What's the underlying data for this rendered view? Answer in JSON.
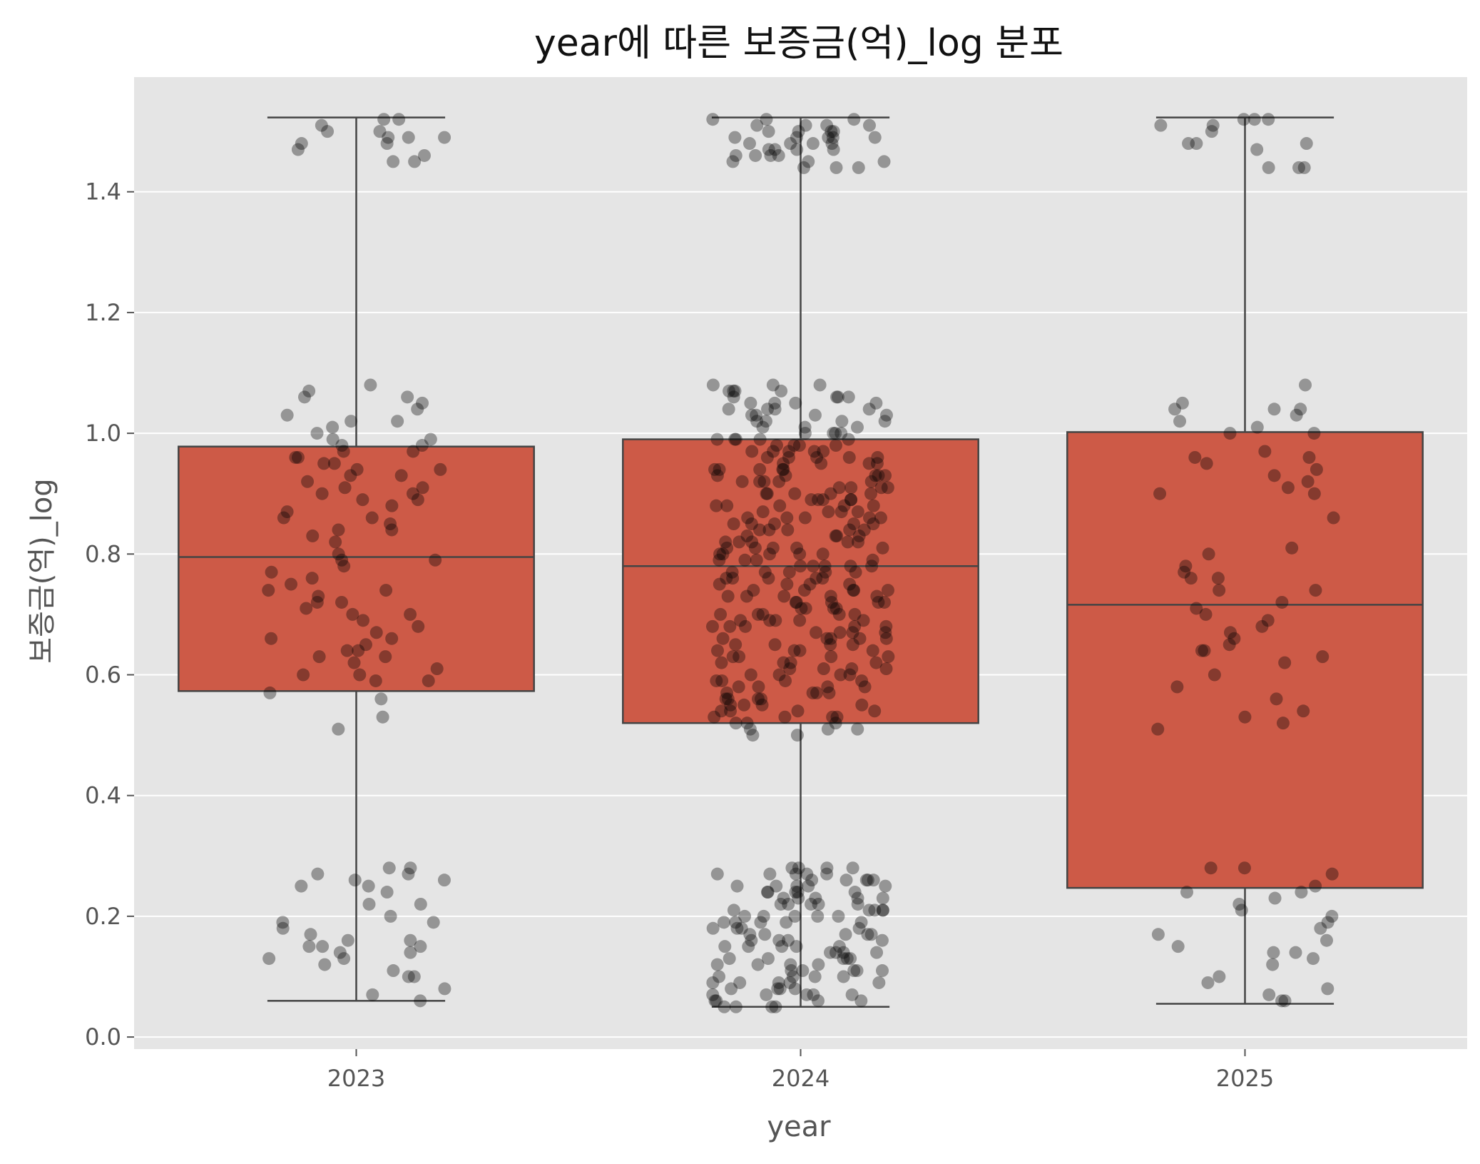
{
  "chart_data": {
    "type": "box",
    "title": "year에 따른 보증금(억)_log 분포",
    "xlabel": "year",
    "ylabel": "보증금(억)_log",
    "ylim": [
      -0.02,
      1.59
    ],
    "yticks": [
      "0.0",
      "0.2",
      "0.4",
      "0.6",
      "0.8",
      "1.0",
      "1.2",
      "1.4"
    ],
    "grid": true,
    "colors": {
      "panel": "#e5e5e5",
      "grid": "#ffffff",
      "box_fill": "#cd5a47",
      "box_edge": "#444444",
      "points": "#000000"
    },
    "categories": [
      "2023",
      "2024",
      "2025"
    ],
    "boxes": [
      {
        "category": "2023",
        "whisker_low": 0.06,
        "q1": 0.573,
        "median": 0.795,
        "q3": 0.978,
        "whisker_high": 1.523
      },
      {
        "category": "2024",
        "whisker_low": 0.05,
        "q1": 0.52,
        "median": 0.78,
        "q3": 0.99,
        "whisker_high": 1.523
      },
      {
        "category": "2025",
        "whisker_low": 0.055,
        "q1": 0.247,
        "median": 0.716,
        "q3": 1.002,
        "whisker_high": 1.523
      }
    ],
    "points": [
      {
        "category": "2023",
        "values": [
          1.52,
          1.51,
          1.5,
          1.49,
          1.49,
          1.48,
          1.47,
          1.46,
          1.45,
          1.45,
          1.52,
          1.5,
          1.49,
          1.48,
          1.08,
          1.07,
          1.06,
          1.06,
          1.05,
          1.04,
          1.03,
          1.02,
          1.02,
          1.01,
          1.0,
          0.99,
          0.99,
          0.98,
          0.98,
          0.97,
          0.97,
          0.96,
          0.96,
          0.95,
          0.95,
          0.94,
          0.94,
          0.93,
          0.93,
          0.92,
          0.91,
          0.91,
          0.9,
          0.9,
          0.89,
          0.89,
          0.88,
          0.87,
          0.86,
          0.86,
          0.85,
          0.84,
          0.84,
          0.83,
          0.82,
          0.8,
          0.79,
          0.79,
          0.78,
          0.77,
          0.76,
          0.75,
          0.74,
          0.74,
          0.73,
          0.72,
          0.72,
          0.71,
          0.7,
          0.7,
          0.69,
          0.68,
          0.67,
          0.66,
          0.66,
          0.65,
          0.64,
          0.64,
          0.63,
          0.63,
          0.62,
          0.61,
          0.6,
          0.6,
          0.59,
          0.59,
          0.57,
          0.56,
          0.53,
          0.51,
          0.28,
          0.28,
          0.27,
          0.27,
          0.26,
          0.26,
          0.25,
          0.25,
          0.24,
          0.22,
          0.22,
          0.2,
          0.19,
          0.19,
          0.18,
          0.17,
          0.16,
          0.16,
          0.15,
          0.15,
          0.15,
          0.14,
          0.14,
          0.13,
          0.13,
          0.12,
          0.11,
          0.1,
          0.1,
          0.08,
          0.07,
          0.06
        ]
      },
      {
        "category": "2024",
        "values": [
          1.52,
          1.52,
          1.51,
          1.51,
          1.51,
          1.5,
          1.5,
          1.5,
          1.49,
          1.49,
          1.49,
          1.49,
          1.48,
          1.48,
          1.48,
          1.48,
          1.47,
          1.47,
          1.47,
          1.46,
          1.46,
          1.46,
          1.45,
          1.45,
          1.45,
          1.44,
          1.44,
          1.44,
          1.52,
          1.5,
          1.49,
          1.47,
          1.46,
          1.51,
          1.08,
          1.08,
          1.08,
          1.07,
          1.07,
          1.07,
          1.07,
          1.06,
          1.06,
          1.06,
          1.06,
          1.05,
          1.05,
          1.05,
          1.05,
          1.04,
          1.04,
          1.04,
          1.04,
          1.03,
          1.03,
          1.03,
          1.03,
          1.02,
          1.02,
          1.02,
          1.02,
          1.01,
          1.01,
          1.01,
          1.0,
          1.0,
          1.0,
          1.0,
          0.99,
          0.99,
          0.99,
          0.99,
          0.99,
          0.98,
          0.98,
          0.98,
          0.98,
          0.97,
          0.97,
          0.97,
          0.97,
          0.96,
          0.96,
          0.96,
          0.96,
          0.95,
          0.95,
          0.95,
          0.95,
          0.94,
          0.94,
          0.94,
          0.94,
          0.93,
          0.93,
          0.93,
          0.93,
          0.92,
          0.92,
          0.92,
          0.92,
          0.91,
          0.91,
          0.91,
          0.91,
          0.9,
          0.9,
          0.9,
          0.9,
          0.89,
          0.89,
          0.89,
          0.89,
          0.88,
          0.88,
          0.88,
          0.88,
          0.87,
          0.87,
          0.87,
          0.87,
          0.86,
          0.86,
          0.86,
          0.86,
          0.85,
          0.85,
          0.85,
          0.85,
          0.84,
          0.84,
          0.84,
          0.84,
          0.83,
          0.83,
          0.83,
          0.83,
          0.82,
          0.82,
          0.82,
          0.82,
          0.81,
          0.81,
          0.81,
          0.81,
          0.8,
          0.8,
          0.8,
          0.8,
          0.79,
          0.79,
          0.79,
          0.79,
          0.78,
          0.78,
          0.78,
          0.78,
          0.77,
          0.77,
          0.77,
          0.77,
          0.76,
          0.76,
          0.76,
          0.76,
          0.75,
          0.75,
          0.75,
          0.75,
          0.74,
          0.74,
          0.74,
          0.74,
          0.73,
          0.73,
          0.73,
          0.73,
          0.72,
          0.72,
          0.72,
          0.72,
          0.71,
          0.71,
          0.71,
          0.71,
          0.7,
          0.7,
          0.7,
          0.7,
          0.69,
          0.69,
          0.69,
          0.69,
          0.68,
          0.68,
          0.68,
          0.68,
          0.67,
          0.67,
          0.67,
          0.67,
          0.66,
          0.66,
          0.66,
          0.66,
          0.65,
          0.65,
          0.65,
          0.65,
          0.64,
          0.64,
          0.64,
          0.64,
          0.63,
          0.63,
          0.63,
          0.63,
          0.62,
          0.62,
          0.62,
          0.62,
          0.61,
          0.61,
          0.61,
          0.61,
          0.6,
          0.6,
          0.6,
          0.6,
          0.59,
          0.59,
          0.59,
          0.59,
          0.58,
          0.58,
          0.58,
          0.58,
          0.57,
          0.57,
          0.57,
          0.57,
          0.56,
          0.56,
          0.56,
          0.56,
          0.55,
          0.55,
          0.55,
          0.55,
          0.54,
          0.54,
          0.54,
          0.54,
          0.53,
          0.53,
          0.53,
          0.53,
          0.52,
          0.52,
          0.52,
          0.51,
          0.51,
          0.51,
          0.5,
          0.5,
          0.96,
          0.94,
          0.92,
          0.9,
          0.88,
          0.86,
          0.84,
          0.82,
          0.8,
          0.78,
          0.76,
          0.74,
          0.72,
          0.7,
          0.68,
          0.66,
          0.97,
          0.93,
          0.89,
          0.85,
          0.81,
          0.77,
          0.73,
          0.69,
          0.28,
          0.28,
          0.28,
          0.27,
          0.27,
          0.27,
          0.27,
          0.26,
          0.26,
          0.26,
          0.26,
          0.25,
          0.25,
          0.25,
          0.25,
          0.24,
          0.24,
          0.24,
          0.24,
          0.23,
          0.23,
          0.23,
          0.23,
          0.22,
          0.22,
          0.22,
          0.22,
          0.21,
          0.21,
          0.21,
          0.21,
          0.2,
          0.2,
          0.2,
          0.2,
          0.19,
          0.19,
          0.19,
          0.19,
          0.18,
          0.18,
          0.18,
          0.18,
          0.17,
          0.17,
          0.17,
          0.17,
          0.16,
          0.16,
          0.16,
          0.16,
          0.15,
          0.15,
          0.15,
          0.15,
          0.14,
          0.14,
          0.14,
          0.14,
          0.13,
          0.13,
          0.13,
          0.13,
          0.12,
          0.12,
          0.12,
          0.12,
          0.11,
          0.11,
          0.11,
          0.11,
          0.1,
          0.1,
          0.1,
          0.1,
          0.09,
          0.09,
          0.09,
          0.09,
          0.08,
          0.08,
          0.08,
          0.08,
          0.07,
          0.07,
          0.07,
          0.07,
          0.06,
          0.06,
          0.06,
          0.06,
          0.05,
          0.05,
          0.05,
          0.05,
          0.27,
          0.25,
          0.23,
          0.21,
          0.19,
          0.17,
          0.15,
          0.13,
          0.11,
          0.09,
          0.07,
          0.28,
          0.26,
          0.24,
          0.22,
          0.2
        ]
      },
      {
        "category": "2025",
        "values": [
          1.52,
          1.52,
          1.52,
          1.51,
          1.51,
          1.5,
          1.48,
          1.48,
          1.48,
          1.47,
          1.44,
          1.44,
          1.44,
          1.08,
          1.05,
          1.04,
          1.04,
          1.04,
          1.03,
          1.02,
          1.01,
          1.0,
          1.0,
          0.97,
          0.96,
          0.96,
          0.95,
          0.94,
          0.93,
          0.92,
          0.91,
          0.9,
          0.9,
          0.86,
          0.81,
          0.8,
          0.78,
          0.77,
          0.76,
          0.76,
          0.74,
          0.74,
          0.72,
          0.71,
          0.7,
          0.69,
          0.68,
          0.67,
          0.66,
          0.65,
          0.64,
          0.64,
          0.63,
          0.62,
          0.6,
          0.58,
          0.56,
          0.54,
          0.53,
          0.52,
          0.51,
          0.28,
          0.28,
          0.27,
          0.25,
          0.24,
          0.24,
          0.23,
          0.22,
          0.21,
          0.2,
          0.19,
          0.18,
          0.17,
          0.16,
          0.15,
          0.14,
          0.14,
          0.13,
          0.12,
          0.1,
          0.09,
          0.08,
          0.07,
          0.06,
          0.06
        ]
      }
    ]
  }
}
